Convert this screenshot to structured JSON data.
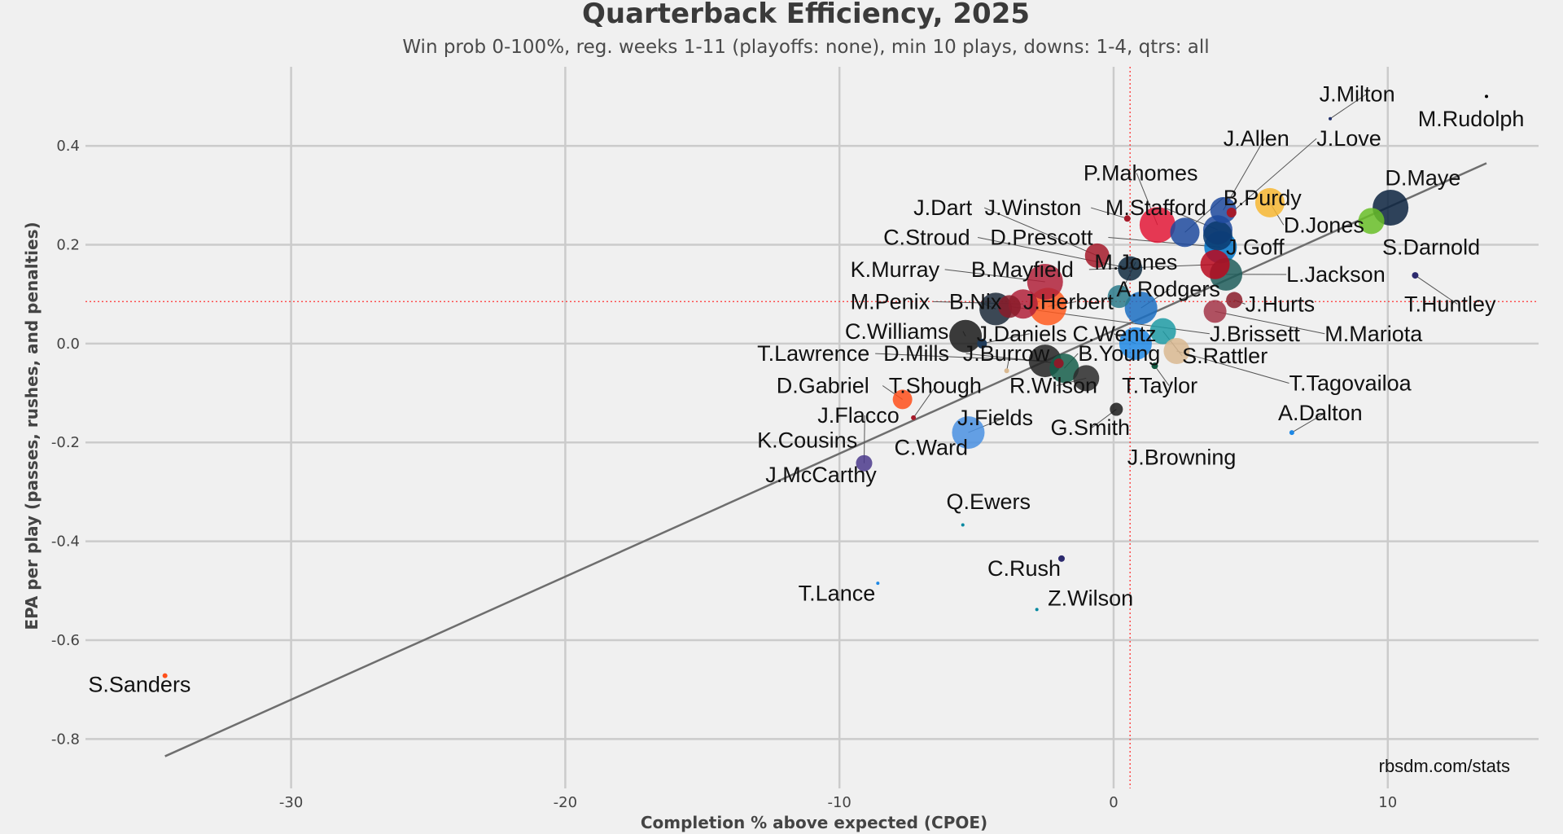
{
  "chart_data": {
    "type": "scatter",
    "title": "Quarterback Efficiency, 2025",
    "subtitle": "Win prob 0-100%, reg. weeks 1-11 (playoffs: none), min 10 plays, downs: 1-4, qtrs: all",
    "xlabel": "Completion % above expected (CPOE)",
    "ylabel": "EPA per play (passes, rushes, and penalties)",
    "source": "rbsdm.com/stats",
    "xlim": [
      -37.5,
      15.5
    ],
    "ylim": [
      -0.9,
      0.56
    ],
    "xticks": [
      -30,
      -20,
      -10,
      0,
      10
    ],
    "yticks": [
      0.4,
      0.2,
      0.0,
      -0.2,
      -0.4,
      -0.6,
      -0.8
    ],
    "ytick_labels": [
      "0.4",
      "0.2",
      "0.0",
      "-0.2",
      "-0.4",
      "-0.6",
      "-0.8"
    ],
    "grid": true,
    "mean_lines": {
      "x": 0.6,
      "y": 0.085,
      "color": "#ff3333"
    },
    "fit_line": {
      "x": [
        -34.6,
        13.6
      ],
      "y": [
        -0.835,
        0.365
      ],
      "color": "#6e6e6e"
    },
    "points": [
      {
        "name": "M.Rudolph",
        "x": 13.6,
        "y": 0.5,
        "size": 2,
        "color": "#000000"
      },
      {
        "name": "J.Milton",
        "x": 7.9,
        "y": 0.455,
        "size": 2,
        "color": "#22306b"
      },
      {
        "name": "J.Allen",
        "x": 4.0,
        "y": 0.27,
        "size": 16,
        "color": "#1f4a9e"
      },
      {
        "name": "J.Love",
        "x": 4.3,
        "y": 0.265,
        "size": 6,
        "color": "#a51a2a"
      },
      {
        "name": "B.Purdy",
        "x": 2.6,
        "y": 0.225,
        "size": 18,
        "color": "#1f4a9e"
      },
      {
        "name": "D.Jones",
        "x": 5.7,
        "y": 0.285,
        "size": 18,
        "color": "#f7b733"
      },
      {
        "name": "D.Maye",
        "x": 10.1,
        "y": 0.275,
        "size": 22,
        "color": "#0c2340"
      },
      {
        "name": "S.Darnold",
        "x": 9.4,
        "y": 0.248,
        "size": 16,
        "color": "#69be28"
      },
      {
        "name": "P.Mahomes",
        "x": 1.6,
        "y": 0.24,
        "size": 22,
        "color": "#e31837"
      },
      {
        "name": "M.Stafford",
        "x": 3.8,
        "y": 0.23,
        "size": 18,
        "color": "#1f4a9e"
      },
      {
        "name": "J.Goff",
        "x": 3.8,
        "y": 0.218,
        "size": 18,
        "color": "#0b3a6e"
      },
      {
        "name": "J.Winston",
        "x": 0.5,
        "y": 0.253,
        "size": 4,
        "color": "#a51a2a"
      },
      {
        "name": "J.Dart",
        "x": -0.6,
        "y": 0.178,
        "size": 15,
        "color": "#a51a2a"
      },
      {
        "name": "D.Prescott",
        "x": 3.9,
        "y": 0.195,
        "size": 20,
        "color": "#0074c8"
      },
      {
        "name": "C.Stroud",
        "x": 0.6,
        "y": 0.152,
        "size": 15,
        "color": "#0f2a3f"
      },
      {
        "name": "M.Jones",
        "x": 0.2,
        "y": 0.095,
        "size": 14,
        "color": "#2a7a8a"
      },
      {
        "name": "L.Jackson",
        "x": 4.1,
        "y": 0.14,
        "size": 20,
        "color": "#1f5d5b"
      },
      {
        "name": "K.Murray",
        "x": -2.5,
        "y": 0.125,
        "size": 22,
        "color": "#b0213a"
      },
      {
        "name": "B.Mayfield",
        "x": 3.7,
        "y": 0.16,
        "size": 18,
        "color": "#b8081d"
      },
      {
        "name": "A.Rodgers",
        "x": 1.0,
        "y": 0.072,
        "size": 20,
        "color": "#1b6ec2"
      },
      {
        "name": "J.Hurts",
        "x": 4.4,
        "y": 0.088,
        "size": 10,
        "color": "#8a1c2a"
      },
      {
        "name": "M.Mariota",
        "x": 3.7,
        "y": 0.065,
        "size": 14,
        "color": "#a33548"
      },
      {
        "name": "J.Brissett",
        "x": -3.8,
        "y": 0.075,
        "size": 14,
        "color": "#8a1c2a"
      },
      {
        "name": "J.Herbert",
        "x": -2.4,
        "y": 0.075,
        "size": 23,
        "color": "#ff5a1f"
      },
      {
        "name": "M.Penix",
        "x": -3.3,
        "y": 0.08,
        "size": 18,
        "color": "#b0213a"
      },
      {
        "name": "B.Nix",
        "x": -4.3,
        "y": 0.07,
        "size": 20,
        "color": "#1c2a3a"
      },
      {
        "name": "C.Wentz",
        "x": 0.8,
        "y": 0.0,
        "size": 20,
        "color": "#1e88e5"
      },
      {
        "name": "C.Williams",
        "x": -5.4,
        "y": 0.015,
        "size": 20,
        "color": "#1a1a1a"
      },
      {
        "name": "J.Daniels",
        "x": -4.8,
        "y": 0.0,
        "size": 6,
        "color": "#1f3b5a"
      },
      {
        "name": "S.Rattler",
        "x": 1.8,
        "y": 0.025,
        "size": 16,
        "color": "#1f9ba5"
      },
      {
        "name": "T.Tagovailoa",
        "x": 2.3,
        "y": -0.015,
        "size": 16,
        "color": "#d9b991"
      },
      {
        "name": "T.Lawrence",
        "x": -2.5,
        "y": -0.035,
        "size": 20,
        "color": "#222222"
      },
      {
        "name": "D.Mills",
        "x": -2.0,
        "y": -0.04,
        "size": 6,
        "color": "#8a1c2a"
      },
      {
        "name": "J.Burrow",
        "x": -3.9,
        "y": -0.055,
        "size": 3,
        "color": "#d9b991"
      },
      {
        "name": "B.Young",
        "x": -1.8,
        "y": -0.05,
        "size": 18,
        "color": "#155e4a"
      },
      {
        "name": "T.Taylor",
        "x": 1.5,
        "y": -0.045,
        "size": 4,
        "color": "#125740"
      },
      {
        "name": "R.Wilson",
        "x": -1.0,
        "y": -0.07,
        "size": 16,
        "color": "#2a2a2a"
      },
      {
        "name": "D.Gabriel",
        "x": -7.7,
        "y": -0.113,
        "size": 12,
        "color": "#ff4f1a"
      },
      {
        "name": "T.Shough",
        "x": -7.3,
        "y": -0.15,
        "size": 3,
        "color": "#a51a2a"
      },
      {
        "name": "G.Smith",
        "x": 0.1,
        "y": -0.133,
        "size": 8,
        "color": "#1a1a1a"
      },
      {
        "name": "J.Fields",
        "x": -5.3,
        "y": -0.18,
        "size": 20,
        "color": "#4a90e2"
      },
      {
        "name": "J.Flacco",
        "x": -9.1,
        "y": -0.242,
        "size": 10,
        "color": "#4b3a8c"
      },
      {
        "name": "A.Dalton",
        "x": 6.5,
        "y": -0.18,
        "size": 3,
        "color": "#1e88e5"
      },
      {
        "name": "T.Huntley",
        "x": 11.0,
        "y": 0.138,
        "size": 4,
        "color": "#2c2a6e"
      },
      {
        "name": "Q.Ewers",
        "x": -5.5,
        "y": -0.367,
        "size": 2,
        "color": "#0088a0"
      },
      {
        "name": "C.Rush",
        "x": -1.9,
        "y": -0.435,
        "size": 4,
        "color": "#2c2a6e"
      },
      {
        "name": "T.Lance",
        "x": -8.6,
        "y": -0.485,
        "size": 2,
        "color": "#1e88e5"
      },
      {
        "name": "Z.Wilson",
        "x": -2.8,
        "y": -0.538,
        "size": 2,
        "color": "#0088a0"
      },
      {
        "name": "S.Sanders",
        "x": -34.6,
        "y": -0.672,
        "size": 3,
        "color": "#ff4f1a"
      }
    ],
    "labels": [
      {
        "text": "J.Milton",
        "x": 7.5,
        "y": 0.49,
        "target": "J.Milton"
      },
      {
        "text": "M.Rudolph",
        "x": 11.1,
        "y": 0.44
      },
      {
        "text": "J.Allen",
        "x": 4.0,
        "y": 0.4,
        "target": "J.Allen"
      },
      {
        "text": "J.Love",
        "x": 7.4,
        "y": 0.4,
        "target": "J.Love"
      },
      {
        "text": "P.Mahomes",
        "x": -1.1,
        "y": 0.33,
        "target": "P.Mahomes"
      },
      {
        "text": "B.Purdy",
        "x": 4.0,
        "y": 0.28,
        "target": "B.Purdy"
      },
      {
        "text": "D.Maye",
        "x": 9.9,
        "y": 0.32
      },
      {
        "text": "J.Dart",
        "x": -7.3,
        "y": 0.26,
        "target": "J.Dart"
      },
      {
        "text": "J.Winston",
        "x": -4.7,
        "y": 0.26,
        "target": "J.Winston"
      },
      {
        "text": "M.Stafford",
        "x": -0.3,
        "y": 0.26,
        "target": "M.Stafford"
      },
      {
        "text": "D.Jones",
        "x": 6.2,
        "y": 0.225,
        "target": "D.Jones"
      },
      {
        "text": "C.Stroud",
        "x": -8.4,
        "y": 0.2,
        "target": "C.Stroud"
      },
      {
        "text": "D.Prescott",
        "x": -4.5,
        "y": 0.2,
        "target": "D.Prescott"
      },
      {
        "text": "J.Goff",
        "x": 4.1,
        "y": 0.18
      },
      {
        "text": "S.Darnold",
        "x": 9.8,
        "y": 0.18
      },
      {
        "text": "M.Jones",
        "x": -0.7,
        "y": 0.15,
        "target": "M.Jones"
      },
      {
        "text": "K.Murray",
        "x": -9.6,
        "y": 0.135,
        "target": "K.Murray"
      },
      {
        "text": "B.Mayfield",
        "x": -5.2,
        "y": 0.135,
        "target": "B.Mayfield"
      },
      {
        "text": "L.Jackson",
        "x": 6.3,
        "y": 0.125,
        "target": "L.Jackson"
      },
      {
        "text": "A.Rodgers",
        "x": 0.1,
        "y": 0.095,
        "target": "A.Rodgers"
      },
      {
        "text": "M.Penix",
        "x": -9.6,
        "y": 0.07,
        "target": "M.Penix"
      },
      {
        "text": "B.Nix",
        "x": -6.0,
        "y": 0.07,
        "target": "B.Nix"
      },
      {
        "text": "J.Herbert",
        "x": -3.3,
        "y": 0.07,
        "target": "J.Herbert"
      },
      {
        "text": "J.Hurts",
        "x": 4.8,
        "y": 0.065,
        "target": "J.Hurts"
      },
      {
        "text": "T.Huntley",
        "x": 10.6,
        "y": 0.065,
        "target": "T.Huntley"
      },
      {
        "text": "C.Williams",
        "x": -9.8,
        "y": 0.01,
        "target": "C.Williams"
      },
      {
        "text": "J.Daniels",
        "x": -5.0,
        "y": 0.005,
        "target": "J.Daniels"
      },
      {
        "text": "C.Wentz",
        "x": -1.5,
        "y": 0.005,
        "target": "C.Wentz"
      },
      {
        "text": "J.Brissett",
        "x": 3.5,
        "y": 0.005,
        "target": "J.Brissett"
      },
      {
        "text": "M.Mariota",
        "x": 7.7,
        "y": 0.005,
        "target": "M.Mariota"
      },
      {
        "text": "T.Lawrence",
        "x": -13.0,
        "y": -0.035,
        "target": "T.Lawrence"
      },
      {
        "text": "D.Mills",
        "x": -8.4,
        "y": -0.035,
        "target": "D.Mills"
      },
      {
        "text": "J.Burrow",
        "x": -5.5,
        "y": -0.035,
        "target": "J.Burrow"
      },
      {
        "text": "B.Young",
        "x": -1.3,
        "y": -0.035,
        "target": "B.Young"
      },
      {
        "text": "S.Rattler",
        "x": 2.5,
        "y": -0.04,
        "target": "S.Rattler"
      },
      {
        "text": "D.Gabriel",
        "x": -12.3,
        "y": -0.1,
        "target": "D.Gabriel"
      },
      {
        "text": "T.Shough",
        "x": -8.2,
        "y": -0.1,
        "target": "T.Shough"
      },
      {
        "text": "R.Wilson",
        "x": -3.8,
        "y": -0.1,
        "target": "R.Wilson"
      },
      {
        "text": "T.Taylor",
        "x": 0.3,
        "y": -0.1,
        "target": "T.Taylor"
      },
      {
        "text": "T.Tagovailoa",
        "x": 6.4,
        "y": -0.095,
        "target": "T.Tagovailoa"
      },
      {
        "text": "J.Flacco",
        "x": -10.8,
        "y": -0.16,
        "target": "J.Flacco"
      },
      {
        "text": "J.Fields",
        "x": -5.7,
        "y": -0.165,
        "target": "J.Fields"
      },
      {
        "text": "A.Dalton",
        "x": 6.0,
        "y": -0.155,
        "target": "A.Dalton"
      },
      {
        "text": "G.Smith",
        "x": -2.3,
        "y": -0.185,
        "target": "G.Smith"
      },
      {
        "text": "K.Cousins",
        "x": -13.0,
        "y": -0.21,
        "target": "K.Cousins"
      },
      {
        "text": "C.Ward",
        "x": -8.0,
        "y": -0.225,
        "target": "C.Ward"
      },
      {
        "text": "J.Browning",
        "x": 0.5,
        "y": -0.245,
        "target": "J.Browning"
      },
      {
        "text": "J.McCarthy",
        "x": -12.7,
        "y": -0.28,
        "target": "J.McCarthy"
      },
      {
        "text": "Q.Ewers",
        "x": -6.1,
        "y": -0.335
      },
      {
        "text": "C.Rush",
        "x": -4.6,
        "y": -0.47
      },
      {
        "text": "T.Lance",
        "x": -11.5,
        "y": -0.52
      },
      {
        "text": "Z.Wilson",
        "x": -2.4,
        "y": -0.53
      },
      {
        "text": "S.Sanders",
        "x": -37.4,
        "y": -0.705
      }
    ]
  }
}
